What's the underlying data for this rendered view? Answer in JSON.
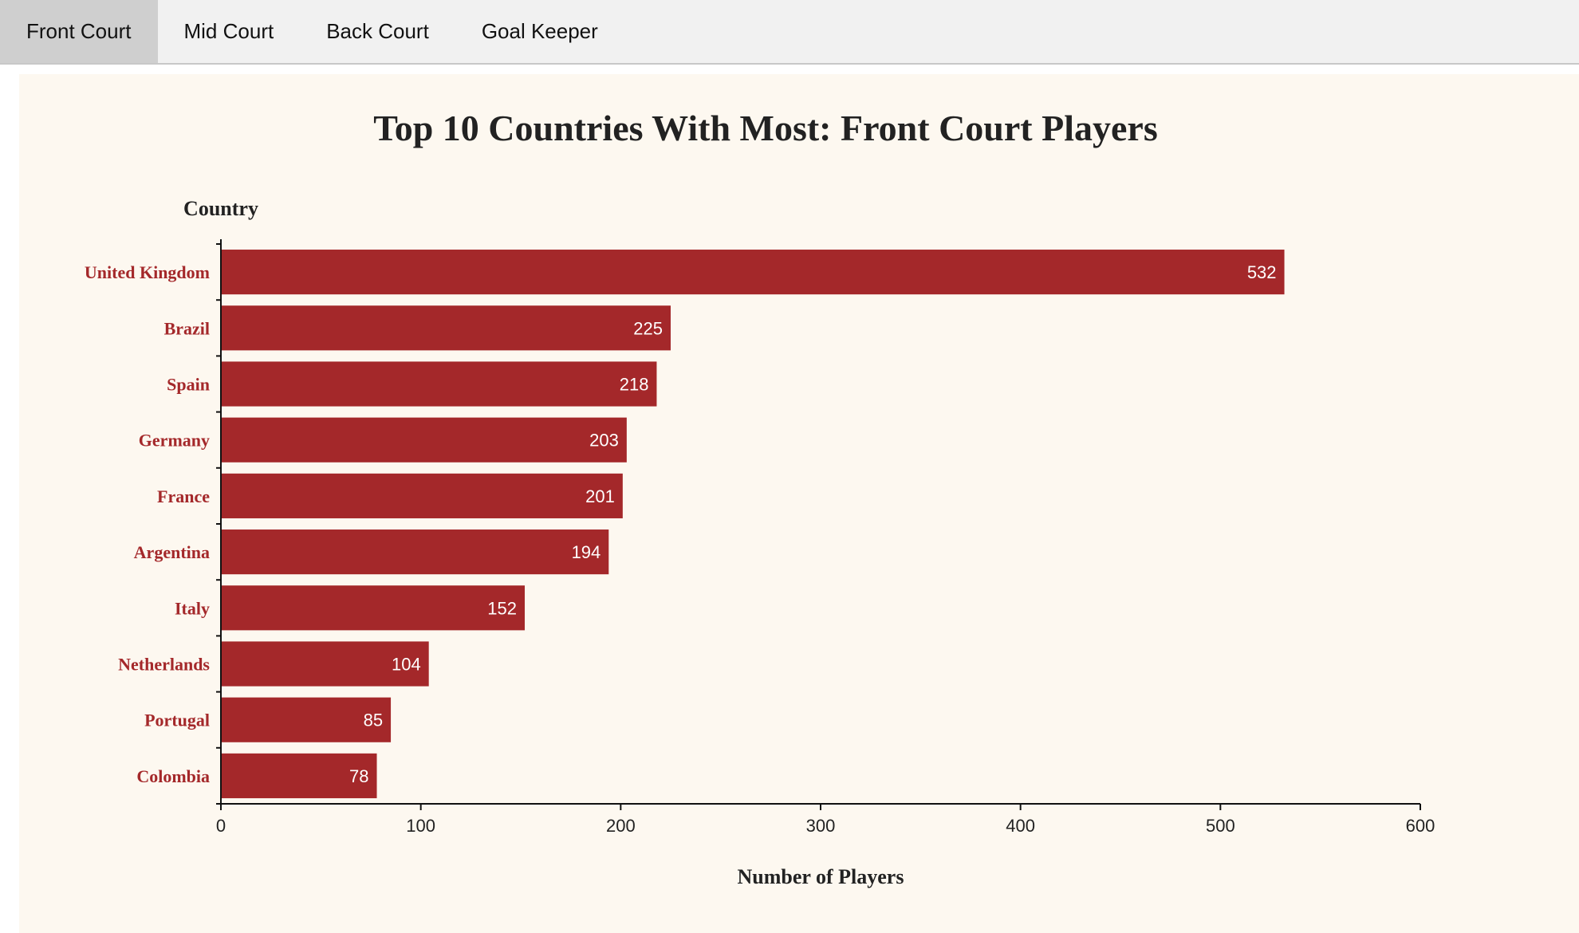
{
  "tabs": [
    {
      "label": "Front Court",
      "active": true
    },
    {
      "label": "Mid Court",
      "active": false
    },
    {
      "label": "Back Court",
      "active": false
    },
    {
      "label": "Goal Keeper",
      "active": false
    }
  ],
  "colors": {
    "bar": "#a4282a",
    "category_label": "#a4282a",
    "value_label": "#ffffff",
    "text": "#222222",
    "panel_bg": "#fdf8f0"
  },
  "chart_data": {
    "type": "bar",
    "orientation": "horizontal",
    "title": "Top 10 Countries With Most: Front Court Players",
    "xlabel": "Number of Players",
    "ylabel": "Country",
    "categories": [
      "United Kingdom",
      "Brazil",
      "Spain",
      "Germany",
      "France",
      "Argentina",
      "Italy",
      "Netherlands",
      "Portugal",
      "Colombia"
    ],
    "values": [
      532,
      225,
      218,
      203,
      201,
      194,
      152,
      104,
      85,
      78
    ],
    "xlim": [
      0,
      600
    ],
    "xticks": [
      0,
      100,
      200,
      300,
      400,
      500,
      600
    ],
    "grid": false,
    "legend": "none"
  }
}
